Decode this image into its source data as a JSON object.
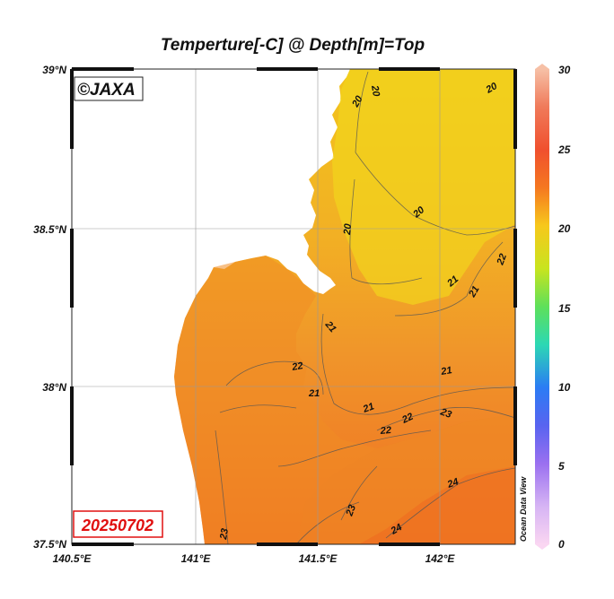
{
  "title": "Temperture[-C] @ Depth[m]=Top",
  "credit": "©JAXA",
  "date": "20250702",
  "software_label": "Ocean Data View",
  "axes": {
    "x_ticks": [
      "140.5°E",
      "141°E",
      "141.5°E",
      "142°E"
    ],
    "y_ticks": [
      "39°N",
      "38.5°N",
      "38°N",
      "37.5°N"
    ]
  },
  "colorbar": {
    "ticks": [
      "30",
      "25",
      "20",
      "15",
      "10",
      "5",
      "0"
    ],
    "colors": [
      "#f6b0a0",
      "#f05a3c",
      "#f77a1c",
      "#f2dd1a",
      "#7ce03c",
      "#2fd8a8",
      "#2c6ff0",
      "#8a66f0",
      "#d9b0f4",
      "#f8d0f0"
    ]
  },
  "contour_labels": [
    "20",
    "20",
    "20",
    "20",
    "20",
    "22",
    "21",
    "21",
    "21",
    "22",
    "21",
    "21",
    "21",
    "22",
    "22",
    "23",
    "24",
    "23",
    "24",
    "23"
  ],
  "colors": {
    "land": "#ffffff",
    "sea_21": "#f0c820",
    "sea_22": "#f2a82a",
    "sea_23": "#f08a22",
    "sea_24": "#ef6a1e"
  }
}
